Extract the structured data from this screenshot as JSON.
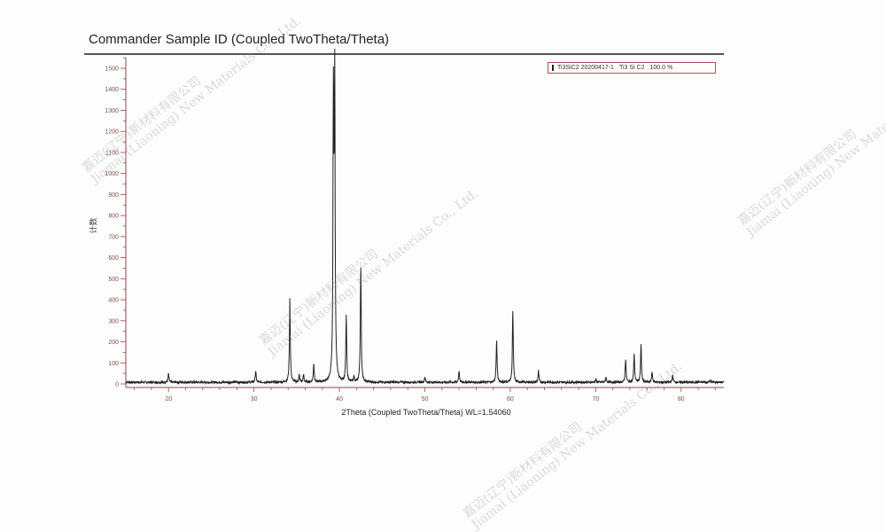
{
  "watermark": {
    "line1": "嘉迈(辽宁)新材料有限公司",
    "line2": "Jiamai (Liaoning) New Materials Co., Ltd."
  },
  "chart_data": {
    "type": "line",
    "title": "Commander Sample ID (Coupled TwoTheta/Theta)",
    "xlabel": "2Theta (Coupled TwoTheta/Theta) WL=1.54060",
    "ylabel": "计数",
    "xlim": [
      15,
      85
    ],
    "ylim": [
      0,
      1550
    ],
    "xticks": [
      20,
      30,
      40,
      50,
      60,
      70,
      80
    ],
    "yticks": [
      0,
      100,
      200,
      300,
      400,
      500,
      600,
      700,
      800,
      900,
      1000,
      1100,
      1200,
      1300,
      1400,
      1500
    ],
    "grid": false,
    "legend": {
      "position": "top-right",
      "entries": [
        {
          "name": "Ti3SiC2 20200417-1",
          "phase": "Ti3 Si C2",
          "fraction": "100.0 %",
          "color": "#222222"
        }
      ]
    },
    "line_color": "#222222",
    "peaks": [
      {
        "x": 20.0,
        "y": 40
      },
      {
        "x": 30.2,
        "y": 55
      },
      {
        "x": 34.2,
        "y": 400
      },
      {
        "x": 35.3,
        "y": 35
      },
      {
        "x": 35.8,
        "y": 35
      },
      {
        "x": 37.0,
        "y": 90
      },
      {
        "x": 39.3,
        "y": 1310
      },
      {
        "x": 39.45,
        "y": 1400
      },
      {
        "x": 40.8,
        "y": 310
      },
      {
        "x": 41.7,
        "y": 25
      },
      {
        "x": 42.5,
        "y": 555
      },
      {
        "x": 50.0,
        "y": 25
      },
      {
        "x": 54.0,
        "y": 55
      },
      {
        "x": 58.4,
        "y": 200
      },
      {
        "x": 60.3,
        "y": 340
      },
      {
        "x": 63.3,
        "y": 55
      },
      {
        "x": 70.0,
        "y": 15
      },
      {
        "x": 71.2,
        "y": 25
      },
      {
        "x": 73.5,
        "y": 110
      },
      {
        "x": 74.5,
        "y": 140
      },
      {
        "x": 75.3,
        "y": 180
      },
      {
        "x": 76.6,
        "y": 50
      },
      {
        "x": 79.0,
        "y": 35
      },
      {
        "x": 83.4,
        "y": 12
      }
    ]
  }
}
